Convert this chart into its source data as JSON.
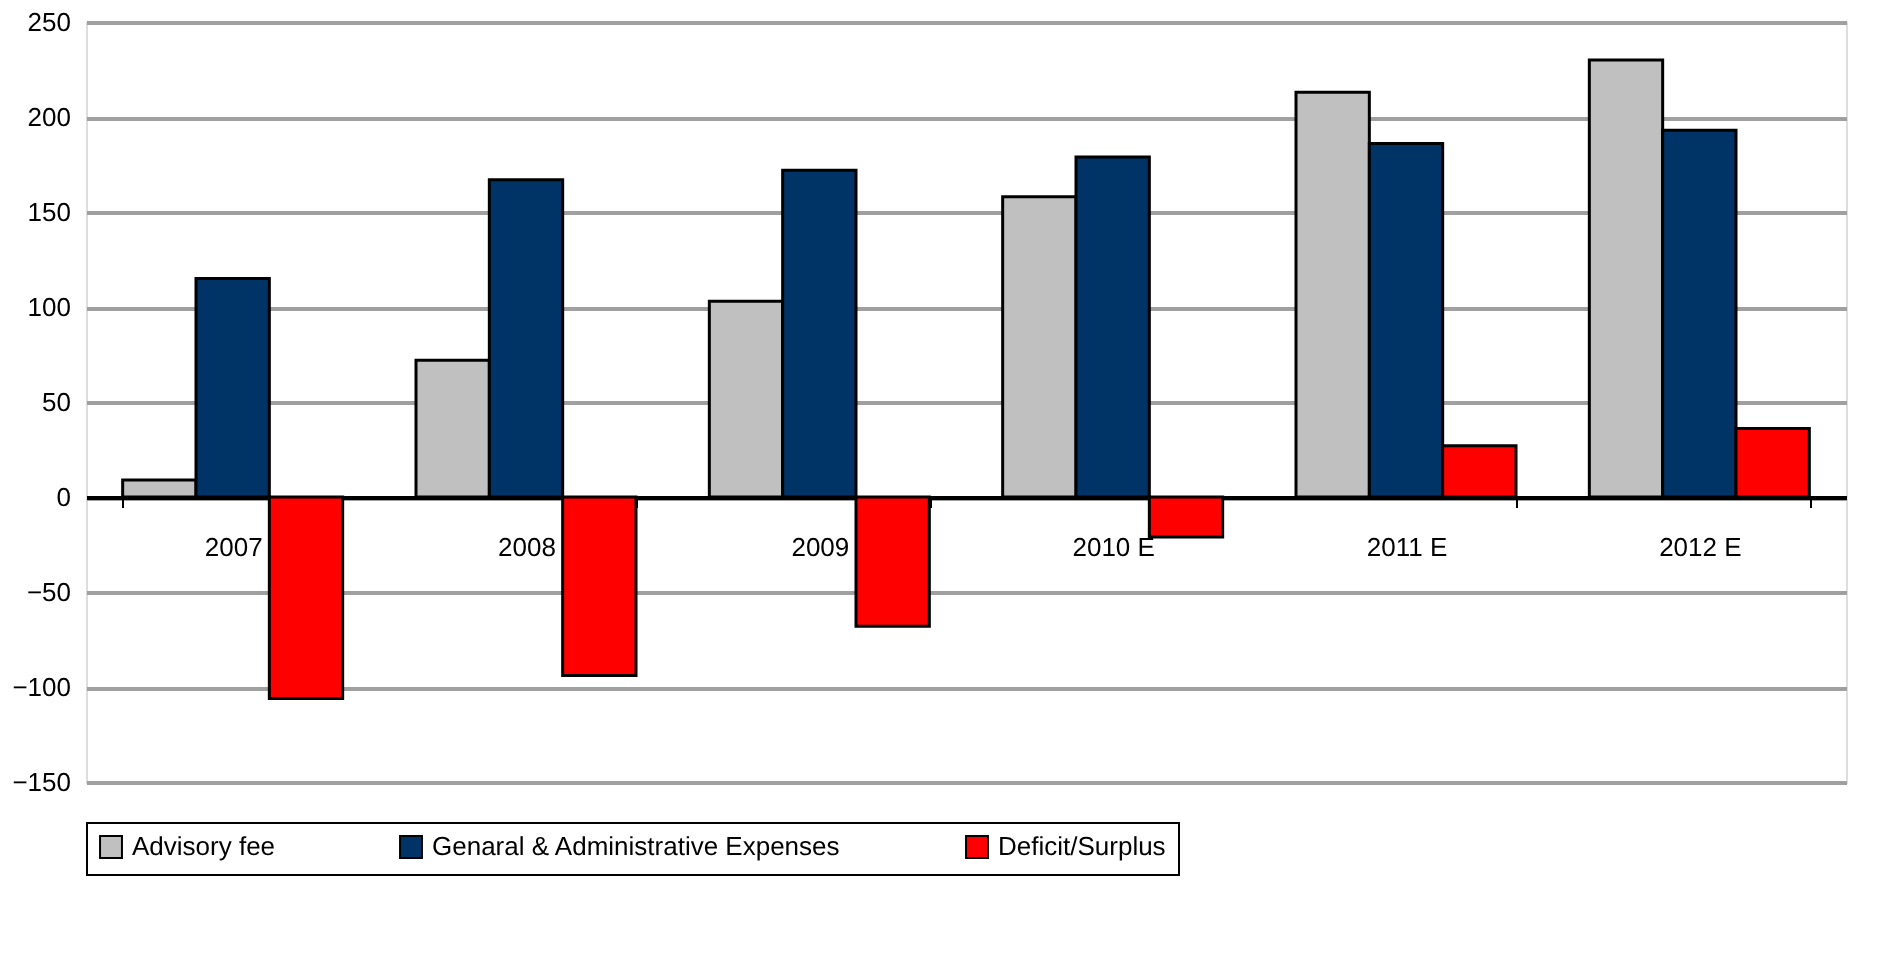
{
  "chart_data": {
    "type": "bar",
    "categories": [
      "2007",
      "2008",
      "2009",
      "2010 E",
      "2011 E",
      "2012 E"
    ],
    "series": [
      {
        "name": "Advisory fee",
        "color": "#c0c0c0",
        "values": [
          9,
          72,
          103,
          158,
          213,
          230
        ]
      },
      {
        "name": "Genaral & Administrative Expenses",
        "color": "#003366",
        "values": [
          115,
          167,
          172,
          179,
          186,
          193
        ]
      },
      {
        "name": "Deficit/Surplus",
        "color": "#ff0000",
        "values": [
          -106,
          -94,
          -68,
          -21,
          27,
          36
        ]
      }
    ],
    "ylim": [
      -150,
      250
    ],
    "yticks": [
      -150,
      -100,
      -50,
      0,
      50,
      100,
      150,
      200,
      250
    ],
    "grid": "y",
    "legend": "bottom"
  }
}
